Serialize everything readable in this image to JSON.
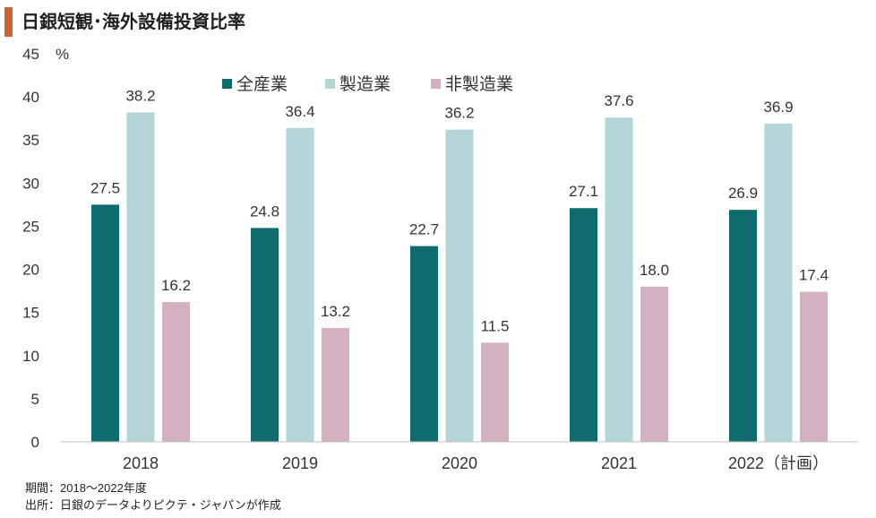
{
  "chart_data": {
    "type": "bar",
    "title": "日銀短観･海外設備投資比率",
    "categories": [
      "2018",
      "2019",
      "2020",
      "2021",
      "2022（計画）"
    ],
    "series": [
      {
        "name": "全産業",
        "values": [
          27.5,
          24.8,
          22.7,
          27.1,
          26.9
        ],
        "color": "#106B6E"
      },
      {
        "name": "製造業",
        "values": [
          38.2,
          36.4,
          36.2,
          37.6,
          36.9
        ],
        "color": "#B3D5D7"
      },
      {
        "name": "非製造業",
        "values": [
          16.2,
          13.2,
          11.5,
          18.0,
          17.4
        ],
        "color": "#D3B0C2"
      }
    ],
    "xlabel": "",
    "ylabel": "%",
    "ylim": [
      0,
      45
    ],
    "yticks": [
      0,
      5,
      10,
      15,
      20,
      25,
      30,
      35,
      40,
      45
    ],
    "grid": false,
    "legend": "top",
    "data_labels": true
  },
  "notes": {
    "period": "期間：2018～2022年度",
    "source": "出所：日銀のデータよりピクテ・ジャパンが作成"
  },
  "colors": {
    "title_accent": "#D0622B",
    "axis_line": "#BFBFBF"
  }
}
